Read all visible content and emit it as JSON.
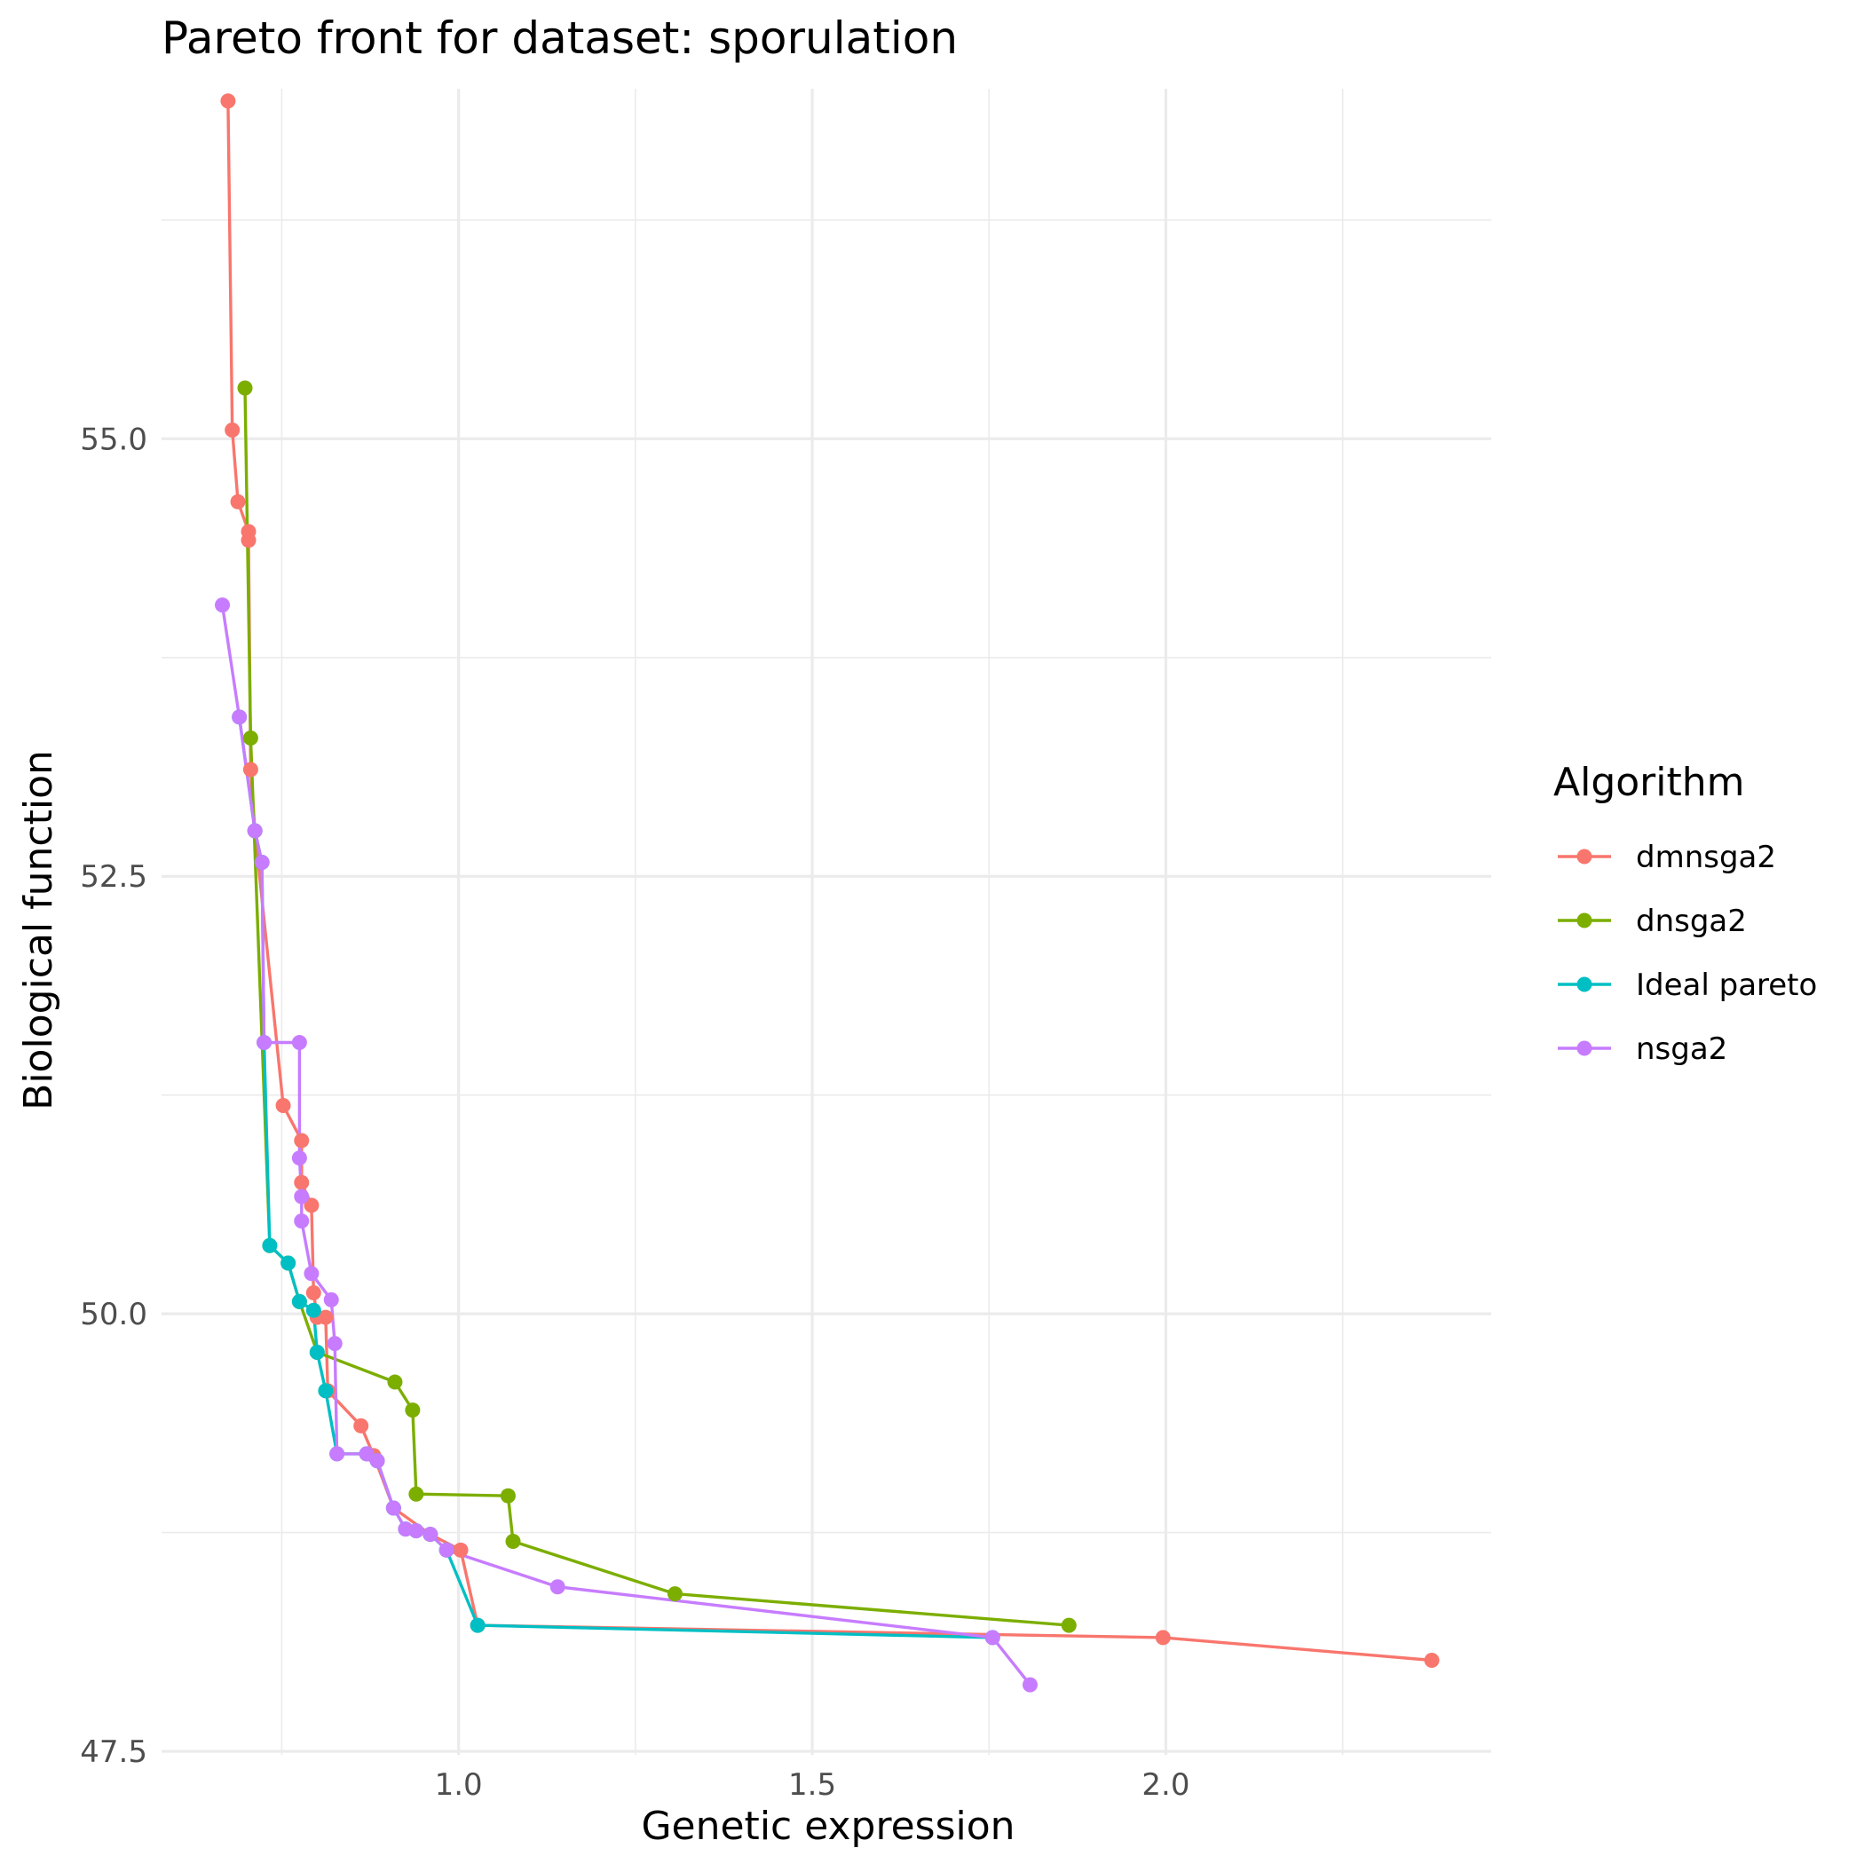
{
  "chart_data": {
    "type": "line",
    "title": "Pareto front for dataset: sporulation",
    "xlabel": "Genetic expression",
    "ylabel": "Biological function",
    "xlim": [
      0.58,
      2.46
    ],
    "ylim": [
      47.48,
      57.0
    ],
    "x_ticks": [
      1.0,
      1.5,
      2.0
    ],
    "x_tick_labels": [
      "1.0",
      "1.5",
      "2.0"
    ],
    "x_minor_ticks": [
      0.75,
      1.25,
      1.75,
      2.25
    ],
    "y_ticks": [
      47.5,
      50.0,
      52.5,
      55.0
    ],
    "y_tick_labels": [
      "47.5",
      "50.0",
      "52.5",
      "55.0"
    ],
    "y_minor_ticks": [
      48.75,
      51.25,
      53.75,
      56.25
    ],
    "grid": true,
    "legend": {
      "title": "Algorithm",
      "position": "right"
    },
    "series": [
      {
        "name": "dmnsga2",
        "color": "#F8766D",
        "points": [
          [
            0.674,
            56.93
          ],
          [
            0.68,
            55.05
          ],
          [
            0.688,
            54.64
          ],
          [
            0.703,
            54.47
          ],
          [
            0.703,
            54.42
          ],
          [
            0.706,
            53.11
          ],
          [
            0.712,
            52.76
          ],
          [
            0.752,
            51.19
          ],
          [
            0.778,
            50.99
          ],
          [
            0.778,
            50.75
          ],
          [
            0.792,
            50.62
          ],
          [
            0.795,
            50.12
          ],
          [
            0.8,
            49.98
          ],
          [
            0.812,
            49.98
          ],
          [
            0.815,
            49.56
          ],
          [
            0.862,
            49.36
          ],
          [
            0.88,
            49.19
          ],
          [
            0.908,
            48.89
          ],
          [
            0.96,
            48.74
          ],
          [
            1.003,
            48.65
          ],
          [
            1.027,
            48.22
          ],
          [
            1.996,
            48.15
          ],
          [
            2.376,
            48.02
          ]
        ]
      },
      {
        "name": "dnsga2",
        "color": "#7CAE00",
        "points": [
          [
            0.698,
            55.29
          ],
          [
            0.706,
            53.29
          ],
          [
            0.733,
            50.39
          ],
          [
            0.759,
            50.29
          ],
          [
            0.775,
            50.07
          ],
          [
            0.8,
            49.78
          ],
          [
            0.91,
            49.61
          ],
          [
            0.935,
            49.45
          ],
          [
            0.94,
            48.97
          ],
          [
            1.07,
            48.96
          ],
          [
            1.077,
            48.7
          ],
          [
            1.306,
            48.4
          ],
          [
            1.863,
            48.22
          ]
        ]
      },
      {
        "name": "Ideal pareto",
        "color": "#00BFC4",
        "points": [
          [
            0.69,
            53.41
          ],
          [
            0.712,
            52.76
          ],
          [
            0.722,
            52.58
          ],
          [
            0.725,
            51.55
          ],
          [
            0.733,
            50.39
          ],
          [
            0.759,
            50.29
          ],
          [
            0.775,
            50.07
          ],
          [
            0.795,
            50.02
          ],
          [
            0.8,
            49.78
          ],
          [
            0.812,
            49.56
          ],
          [
            0.828,
            49.2
          ],
          [
            0.87,
            49.2
          ],
          [
            0.885,
            49.16
          ],
          [
            0.908,
            48.89
          ],
          [
            0.925,
            48.77
          ],
          [
            0.94,
            48.76
          ],
          [
            0.96,
            48.74
          ],
          [
            0.983,
            48.65
          ],
          [
            1.027,
            48.22
          ],
          [
            1.755,
            48.15
          ]
        ]
      },
      {
        "name": "nsga2",
        "color": "#C77CFF",
        "points": [
          [
            0.666,
            54.05
          ],
          [
            0.69,
            53.41
          ],
          [
            0.712,
            52.76
          ],
          [
            0.722,
            52.58
          ],
          [
            0.725,
            51.55
          ],
          [
            0.775,
            51.55
          ],
          [
            0.775,
            50.89
          ],
          [
            0.778,
            50.67
          ],
          [
            0.778,
            50.53
          ],
          [
            0.792,
            50.23
          ],
          [
            0.82,
            50.08
          ],
          [
            0.825,
            49.83
          ],
          [
            0.828,
            49.2
          ],
          [
            0.87,
            49.2
          ],
          [
            0.885,
            49.16
          ],
          [
            0.908,
            48.89
          ],
          [
            0.925,
            48.77
          ],
          [
            0.94,
            48.76
          ],
          [
            0.96,
            48.74
          ],
          [
            0.983,
            48.65
          ],
          [
            1.14,
            48.44
          ],
          [
            1.755,
            48.15
          ],
          [
            1.808,
            47.88
          ]
        ]
      }
    ]
  }
}
